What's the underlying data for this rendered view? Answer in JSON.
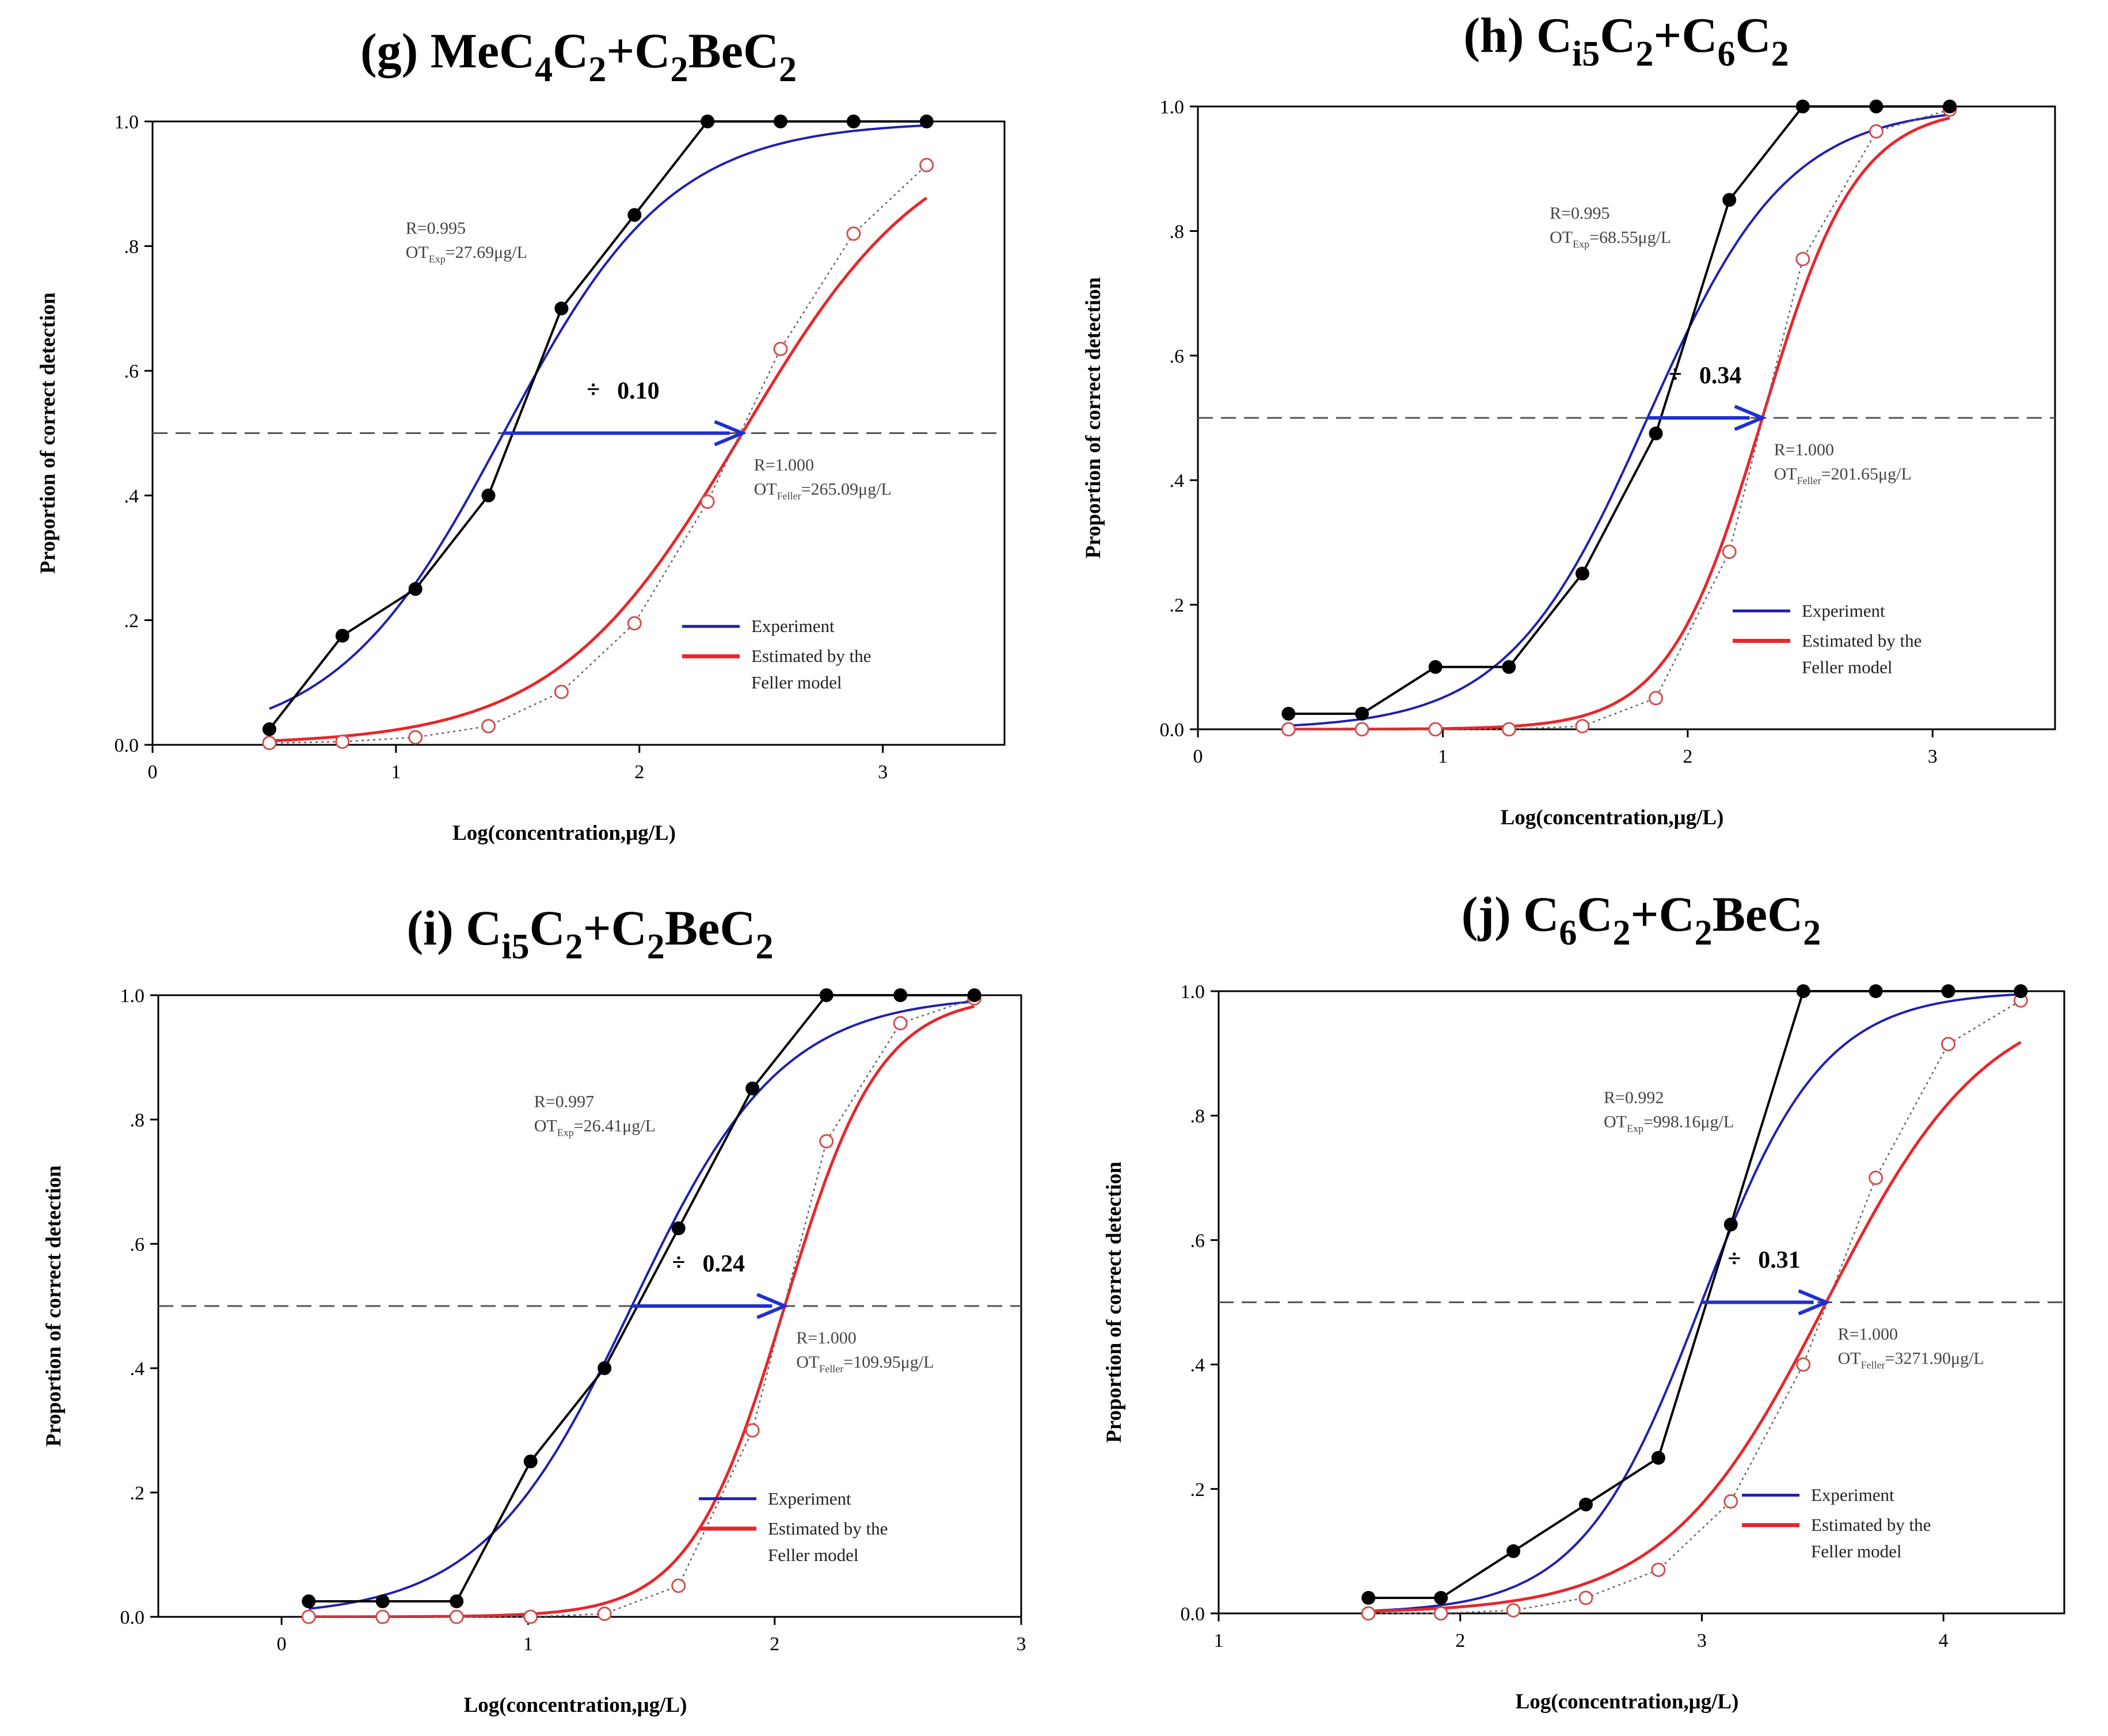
{
  "colors": {
    "experiment": "#1f1fb0",
    "feller": "#e8262a",
    "data": "#000000",
    "arrow": "#1f2fd0",
    "dashed": "#555555"
  },
  "legend": {
    "experiment": "Experiment",
    "feller_line1": "Estimated by the",
    "feller_line2": "Feller model"
  },
  "chart_data": [
    {
      "id": "g",
      "type": "line",
      "title": {
        "prefix": "(g) ",
        "parts": [
          [
            "MeC",
            ""
          ],
          [
            "4",
            "sub"
          ],
          [
            "C",
            ""
          ],
          [
            "2",
            "sub"
          ],
          [
            "+C",
            ""
          ],
          [
            "2",
            "sub"
          ],
          [
            "BeC",
            ""
          ],
          [
            "2",
            "sub"
          ]
        ]
      },
      "xlabel": "Log(concentration,μg/L)",
      "ylabel": "Proportion of correct detection",
      "xlim": [
        0,
        3.5
      ],
      "ylim": [
        0,
        1
      ],
      "xticks": [
        0,
        1,
        2,
        3
      ],
      "xtick_labels": [
        "0",
        "1",
        "2",
        "3"
      ],
      "yticks": [
        0,
        0.2,
        0.4,
        0.6,
        0.8,
        1.0
      ],
      "ytick_labels": [
        "0.0",
        ".2",
        ".4",
        ".6",
        ".8",
        "1.0"
      ],
      "experiment_points": {
        "x": [
          0.48,
          0.78,
          1.08,
          1.38,
          1.68,
          1.98,
          2.28,
          2.58,
          2.88,
          3.18
        ],
        "y": [
          0.025,
          0.175,
          0.25,
          0.4,
          0.7,
          0.85,
          1.0,
          1.0,
          1.0,
          1.0
        ]
      },
      "experiment_fit": {
        "midpoint": 1.442,
        "slope": 2.9
      },
      "feller_points": {
        "x": [
          0.48,
          0.78,
          1.08,
          1.38,
          1.68,
          1.98,
          2.28,
          2.58,
          2.88,
          3.18
        ],
        "y": [
          0.003,
          0.005,
          0.012,
          0.03,
          0.085,
          0.195,
          0.39,
          0.635,
          0.82,
          0.93
        ]
      },
      "feller_fit": {
        "midpoint": 2.423,
        "slope": 2.6
      },
      "threshold": 0.5,
      "ratio_label": "0.10",
      "exp_annotation": {
        "r": "R=0.995",
        "ot_prefix": "OT",
        "ot_sub": "Exp",
        "ot_value": "=27.69μg/L"
      },
      "feller_annotation": {
        "r": "R=1.000",
        "ot_prefix": "OT",
        "ot_sub": "Feller",
        "ot_value": "=265.09μg/L"
      }
    },
    {
      "id": "h",
      "type": "line",
      "title": {
        "prefix": "(h) ",
        "parts": [
          [
            "C",
            ""
          ],
          [
            "i5",
            "sub"
          ],
          [
            "C",
            ""
          ],
          [
            "2",
            "sub"
          ],
          [
            "+C",
            ""
          ],
          [
            "6",
            "sub"
          ],
          [
            "C",
            ""
          ],
          [
            "2",
            "sub"
          ]
        ]
      },
      "xlabel": "Log(concentration,μg/L)",
      "ylabel": "Proportion of correct detection",
      "xlim": [
        0,
        3.5
      ],
      "ylim": [
        0,
        1
      ],
      "xticks": [
        0,
        1,
        2,
        3
      ],
      "xtick_labels": [
        "0",
        "1",
        "2",
        "3"
      ],
      "yticks": [
        0,
        0.2,
        0.4,
        0.6,
        0.8,
        1.0
      ],
      "ytick_labels": [
        "0.0",
        ".2",
        ".4",
        ".6",
        ".8",
        "1.0"
      ],
      "experiment_points": {
        "x": [
          0.37,
          0.67,
          0.97,
          1.27,
          1.57,
          1.87,
          2.17,
          2.47,
          2.77,
          3.07
        ],
        "y": [
          0.025,
          0.025,
          0.1,
          0.1,
          0.25,
          0.475,
          0.85,
          1.0,
          1.0,
          1.0
        ]
      },
      "experiment_fit": {
        "midpoint": 1.836,
        "slope": 3.5
      },
      "feller_points": {
        "x": [
          0.37,
          0.67,
          0.97,
          1.27,
          1.57,
          1.87,
          2.17,
          2.47,
          2.77,
          3.07
        ],
        "y": [
          0.0,
          0.0,
          0.0,
          0.0,
          0.005,
          0.05,
          0.285,
          0.755,
          0.96,
          0.995
        ]
      },
      "feller_fit": {
        "midpoint": 2.305,
        "slope": 5.2
      },
      "threshold": 0.5,
      "ratio_label": "0.34",
      "exp_annotation": {
        "r": "R=0.995",
        "ot_prefix": "OT",
        "ot_sub": "Exp",
        "ot_value": "=68.55μg/L"
      },
      "feller_annotation": {
        "r": "R=1.000",
        "ot_prefix": "OT",
        "ot_sub": "Feller",
        "ot_value": "=201.65μg/L"
      }
    },
    {
      "id": "i",
      "type": "line",
      "title": {
        "prefix": "(i) ",
        "parts": [
          [
            "C",
            ""
          ],
          [
            "i5",
            "sub"
          ],
          [
            "C",
            ""
          ],
          [
            "2",
            "sub"
          ],
          [
            "+C",
            ""
          ],
          [
            "2",
            "sub"
          ],
          [
            "BeC",
            ""
          ],
          [
            "2",
            "sub"
          ]
        ]
      },
      "xlabel": "Log(concentration,μg/L)",
      "ylabel": "Proportion of correct detection",
      "xlim": [
        -0.5,
        3.0
      ],
      "ylim": [
        0,
        1
      ],
      "xticks": [
        0,
        1,
        2,
        3
      ],
      "xtick_labels": [
        "0",
        "1",
        "2",
        "3"
      ],
      "yticks": [
        0,
        0.2,
        0.4,
        0.6,
        0.8,
        1.0
      ],
      "ytick_labels": [
        "0.0",
        ".2",
        ".4",
        ".6",
        ".8",
        "1.0"
      ],
      "experiment_points": {
        "x": [
          0.11,
          0.41,
          0.71,
          1.01,
          1.31,
          1.61,
          1.91,
          2.21,
          2.51,
          2.81
        ],
        "y": [
          0.025,
          0.025,
          0.025,
          0.25,
          0.4,
          0.625,
          0.85,
          1.0,
          1.0,
          1.0
        ]
      },
      "experiment_fit": {
        "midpoint": 1.421,
        "slope": 3.3
      },
      "feller_points": {
        "x": [
          0.11,
          0.41,
          0.71,
          1.01,
          1.31,
          1.61,
          1.91,
          2.21,
          2.51,
          2.81
        ],
        "y": [
          0.0,
          0.0,
          0.0,
          0.0,
          0.005,
          0.05,
          0.3,
          0.765,
          0.955,
          0.995
        ]
      },
      "feller_fit": {
        "midpoint": 2.041,
        "slope": 5.2
      },
      "threshold": 0.5,
      "ratio_label": "0.24",
      "exp_annotation": {
        "r": "R=0.997",
        "ot_prefix": "OT",
        "ot_sub": "Exp",
        "ot_value": "=26.41μg/L"
      },
      "feller_annotation": {
        "r": "R=1.000",
        "ot_prefix": "OT",
        "ot_sub": "Feller",
        "ot_value": "=109.95μg/L"
      }
    },
    {
      "id": "j",
      "type": "line",
      "title": {
        "prefix": "(j) ",
        "parts": [
          [
            "C",
            ""
          ],
          [
            "6",
            "sub"
          ],
          [
            "C",
            ""
          ],
          [
            "2",
            "sub"
          ],
          [
            "+C",
            ""
          ],
          [
            "2",
            "sub"
          ],
          [
            "BeC",
            ""
          ],
          [
            "2",
            "sub"
          ]
        ]
      },
      "xlabel": "Log(concentration,μg/L)",
      "ylabel": "Proportion of correct detection",
      "xlim": [
        1.0,
        4.5
      ],
      "ylim": [
        0,
        1
      ],
      "xticks": [
        1,
        2,
        3,
        4
      ],
      "xtick_labels": [
        "1",
        "2",
        "3",
        "4"
      ],
      "yticks": [
        0,
        0.2,
        0.4,
        0.6,
        0.8,
        1.0
      ],
      "ytick_labels": [
        "0.0",
        ".2",
        ".4",
        ".6",
        ".8",
        "1.0"
      ],
      "experiment_points": {
        "x": [
          1.62,
          1.92,
          2.22,
          2.52,
          2.82,
          3.12,
          3.42,
          3.72,
          4.02,
          4.32
        ],
        "y": [
          0.025,
          0.025,
          0.1,
          0.175,
          0.25,
          0.625,
          1.0,
          1.0,
          1.0,
          1.0
        ]
      },
      "experiment_fit": {
        "midpoint": 2.999,
        "slope": 4.0
      },
      "feller_points": {
        "x": [
          1.62,
          1.92,
          2.22,
          2.52,
          2.82,
          3.12,
          3.42,
          3.72,
          4.02,
          4.32
        ],
        "y": [
          0.0,
          0.0,
          0.005,
          0.025,
          0.07,
          0.18,
          0.4,
          0.7,
          0.915,
          0.985
        ]
      },
      "feller_fit": {
        "midpoint": 3.515,
        "slope": 3.0
      },
      "threshold": 0.5,
      "ratio_label": "0.31",
      "exp_annotation": {
        "r": "R=0.992",
        "ot_prefix": "OT",
        "ot_sub": "Exp",
        "ot_value": "=998.16μg/L"
      },
      "feller_annotation": {
        "r": "R=1.000",
        "ot_prefix": "OT",
        "ot_sub": "Feller",
        "ot_value": "=3271.90μg/L"
      }
    }
  ]
}
